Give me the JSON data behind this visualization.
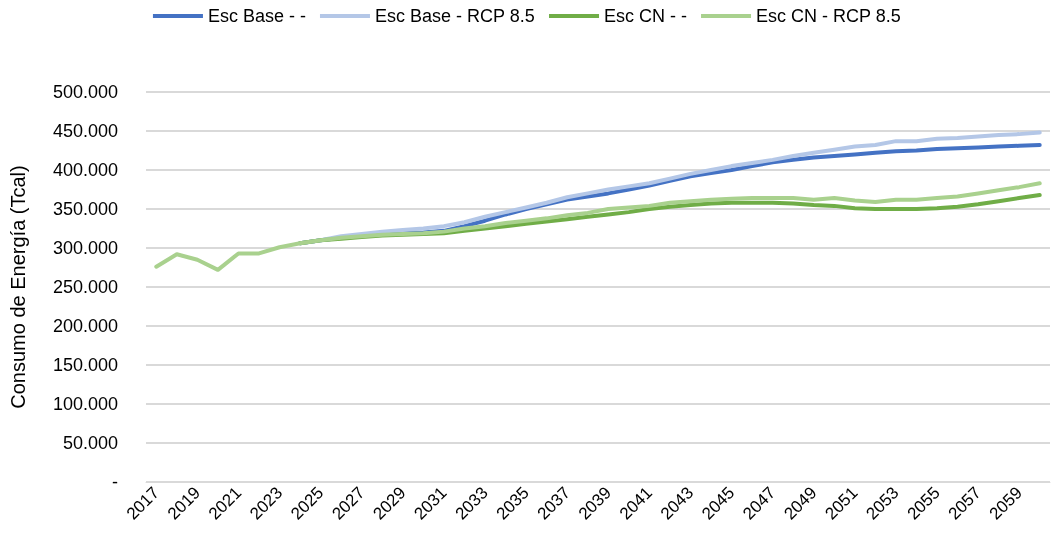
{
  "chart_data": {
    "type": "line",
    "ylabel": "Consumo de Energía (Tcal)",
    "categories": [
      "2017",
      null,
      "2019",
      null,
      "2021",
      null,
      "2023",
      null,
      "2025",
      null,
      "2027",
      null,
      "2029",
      null,
      "2031",
      null,
      "2033",
      null,
      "2035",
      null,
      "2037",
      null,
      "2039",
      null,
      "2041",
      null,
      "2043",
      null,
      "2045",
      null,
      "2047",
      null,
      "2049",
      null,
      "2051",
      null,
      "2053",
      null,
      "2055",
      null,
      "2057",
      null,
      "2059",
      null
    ],
    "series": [
      {
        "name": "Esc Base - -",
        "color": "#4472c4",
        "values": [
          null,
          null,
          null,
          null,
          null,
          null,
          null,
          306,
          310,
          313,
          315,
          318,
          319,
          320,
          322,
          328,
          335,
          343,
          350,
          356,
          362,
          366,
          370,
          375,
          380,
          386,
          392,
          396,
          400,
          405,
          410,
          413,
          416,
          418,
          420,
          422,
          424,
          425,
          427,
          428,
          429,
          430,
          431,
          432
        ]
      },
      {
        "name": "Esc Base - RCP 8.5",
        "color": "#b4c7e7",
        "values": [
          null,
          null,
          null,
          null,
          null,
          null,
          null,
          306,
          310,
          315,
          318,
          321,
          323,
          325,
          328,
          333,
          340,
          346,
          352,
          358,
          365,
          370,
          375,
          379,
          383,
          389,
          395,
          400,
          405,
          409,
          413,
          418,
          422,
          426,
          430,
          432,
          437,
          437,
          440,
          441,
          443,
          445,
          446,
          448
        ]
      },
      {
        "name": "Esc CN - -",
        "color": "#70ad47",
        "values": [
          null,
          null,
          null,
          null,
          null,
          null,
          null,
          306,
          310,
          312,
          314,
          316,
          317,
          318,
          319,
          322,
          325,
          328,
          331,
          334,
          337,
          340,
          343,
          346,
          350,
          353,
          355,
          357,
          358,
          358,
          358,
          357,
          355,
          354,
          351,
          350,
          350,
          350,
          351,
          353,
          356,
          360,
          364,
          368
        ]
      },
      {
        "name": "Esc CN - RCP 8.5",
        "color": "#a9d18e",
        "values": [
          276,
          292,
          285,
          272,
          293,
          293,
          301,
          306,
          310,
          313,
          315,
          317,
          318,
          319,
          321,
          325,
          328,
          332,
          335,
          338,
          342,
          345,
          350,
          352,
          354,
          358,
          360,
          362,
          363,
          364,
          364,
          364,
          362,
          364,
          361,
          359,
          362,
          362,
          364,
          366,
          370,
          374,
          378,
          383
        ]
      }
    ],
    "ylim": [
      0,
      500
    ],
    "yticks": [
      {
        "value": 0,
        "label": "-"
      },
      {
        "value": 50,
        "label": "50.000"
      },
      {
        "value": 100,
        "label": "100.000"
      },
      {
        "value": 150,
        "label": "150.000"
      },
      {
        "value": 200,
        "label": "200.000"
      },
      {
        "value": 250,
        "label": "250.000"
      },
      {
        "value": 300,
        "label": "300.000"
      },
      {
        "value": 350,
        "label": "350.000"
      },
      {
        "value": 400,
        "label": "400.000"
      },
      {
        "value": 450,
        "label": "450.000"
      },
      {
        "value": 500,
        "label": "500.000"
      }
    ],
    "grid": "y",
    "legend": "top",
    "marker": "none",
    "line_style": "solid"
  }
}
